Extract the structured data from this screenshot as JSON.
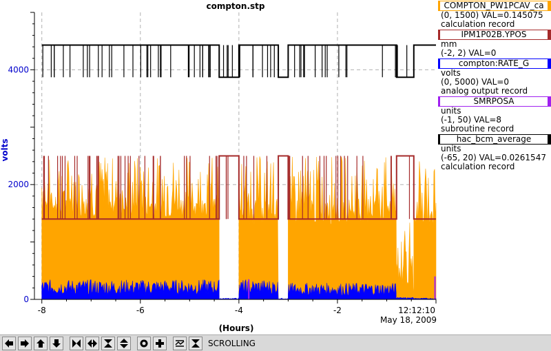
{
  "chart_data": {
    "type": "line",
    "title": "compton.stp",
    "xlabel": "(Hours)",
    "ylabel": "volts",
    "xlim": [
      -8.15,
      -0.0
    ],
    "ylim": [
      0,
      5000
    ],
    "x_ticks": [
      -8,
      -6,
      -4,
      -2
    ],
    "y_ticks": [
      0,
      2000,
      4000
    ],
    "time_label": "12:12:10",
    "date_label": "May 18, 2009",
    "grid": true,
    "series": [
      {
        "name": "COMPTON_PW1PCAV_ca",
        "color": "#ffa500",
        "range_text": "(0, 1500) VAL=0.145075",
        "type_text": "calculation record",
        "units": ""
      },
      {
        "name": "IPM1P02B.YPOS",
        "color": "#a52a2a",
        "range_text": "(-2, 2) VAL=0",
        "type_text": "",
        "units": "mm"
      },
      {
        "name": "compton:RATE_G",
        "color": "#0000ff",
        "range_text": "(0, 5000) VAL=0",
        "type_text": "analog output record",
        "units": "volts"
      },
      {
        "name": "SMRPOSA",
        "color": "#a020f0",
        "range_text": "(-1, 50) VAL=8",
        "type_text": "subroutine record",
        "units": "units"
      },
      {
        "name": "hac_bcm_average",
        "color": "#000000",
        "range_text": "(-65, 20) VAL=0.0261547",
        "type_text": "calculation record",
        "units": "units"
      }
    ],
    "segments": [
      {
        "x": [
          -8.0,
          -4.4
        ],
        "orange_max": 2500,
        "orange_base": 1400,
        "blue": 300,
        "brown": 1400,
        "black": 4430
      },
      {
        "x": [
          -4.4,
          -4.0
        ],
        "orange_max": 0,
        "orange_base": 0,
        "blue": 20,
        "brown": 2500,
        "black": 3870
      },
      {
        "x": [
          -4.0,
          -3.2
        ],
        "orange_max": 2500,
        "orange_base": 1300,
        "blue": 300,
        "brown": 1400,
        "black": 4430
      },
      {
        "x": [
          -3.2,
          -3.0
        ],
        "orange_max": 0,
        "orange_base": 0,
        "blue": 20,
        "brown": 2500,
        "black": 3870
      },
      {
        "x": [
          -3.0,
          -0.8
        ],
        "orange_max": 2500,
        "orange_base": 1300,
        "blue": 250,
        "brown": 1400,
        "black": 4430
      },
      {
        "x": [
          -0.8,
          -0.45
        ],
        "orange_max": 1500,
        "orange_base": 200,
        "blue": 30,
        "brown": 2500,
        "black": 3870
      },
      {
        "x": [
          -0.45,
          0.0
        ],
        "orange_max": 2500,
        "orange_base": 1200,
        "blue": 20,
        "brown": 1400,
        "black": 4430
      }
    ]
  },
  "legend": [
    {
      "name": "COMPTON_PW1PCAV_ca",
      "line1": "(0, 1500) VAL=0.145075",
      "line2": "calculation record"
    },
    {
      "name": "IPM1P02B.YPOS",
      "line1": "mm",
      "line2": "(-2, 2) VAL=0"
    },
    {
      "name": "compton:RATE_G",
      "line1": "volts",
      "line2": "(0, 5000) VAL=0",
      "line3": "analog output record"
    },
    {
      "name": "SMRPOSA",
      "line1": "units",
      "line2": "(-1, 50) VAL=8",
      "line3": "subroutine record"
    },
    {
      "name": "hac_bcm_average",
      "line1": "units",
      "line2": "(-65, 20) VAL=0.0261547",
      "line3": "calculation record"
    }
  ],
  "toolbar": {
    "mode": "SCROLLING",
    "buttons": [
      "arrow-left-icon",
      "arrow-right-icon",
      "arrow-up-icon",
      "arrow-down-icon",
      "zoom-in-horizontal-icon",
      "zoom-out-horizontal-icon",
      "zoom-in-vertical-icon",
      "zoom-out-vertical-icon",
      "autoscale-icon",
      "add-icon",
      "scroll-mode-icon",
      "pause-icon"
    ]
  }
}
